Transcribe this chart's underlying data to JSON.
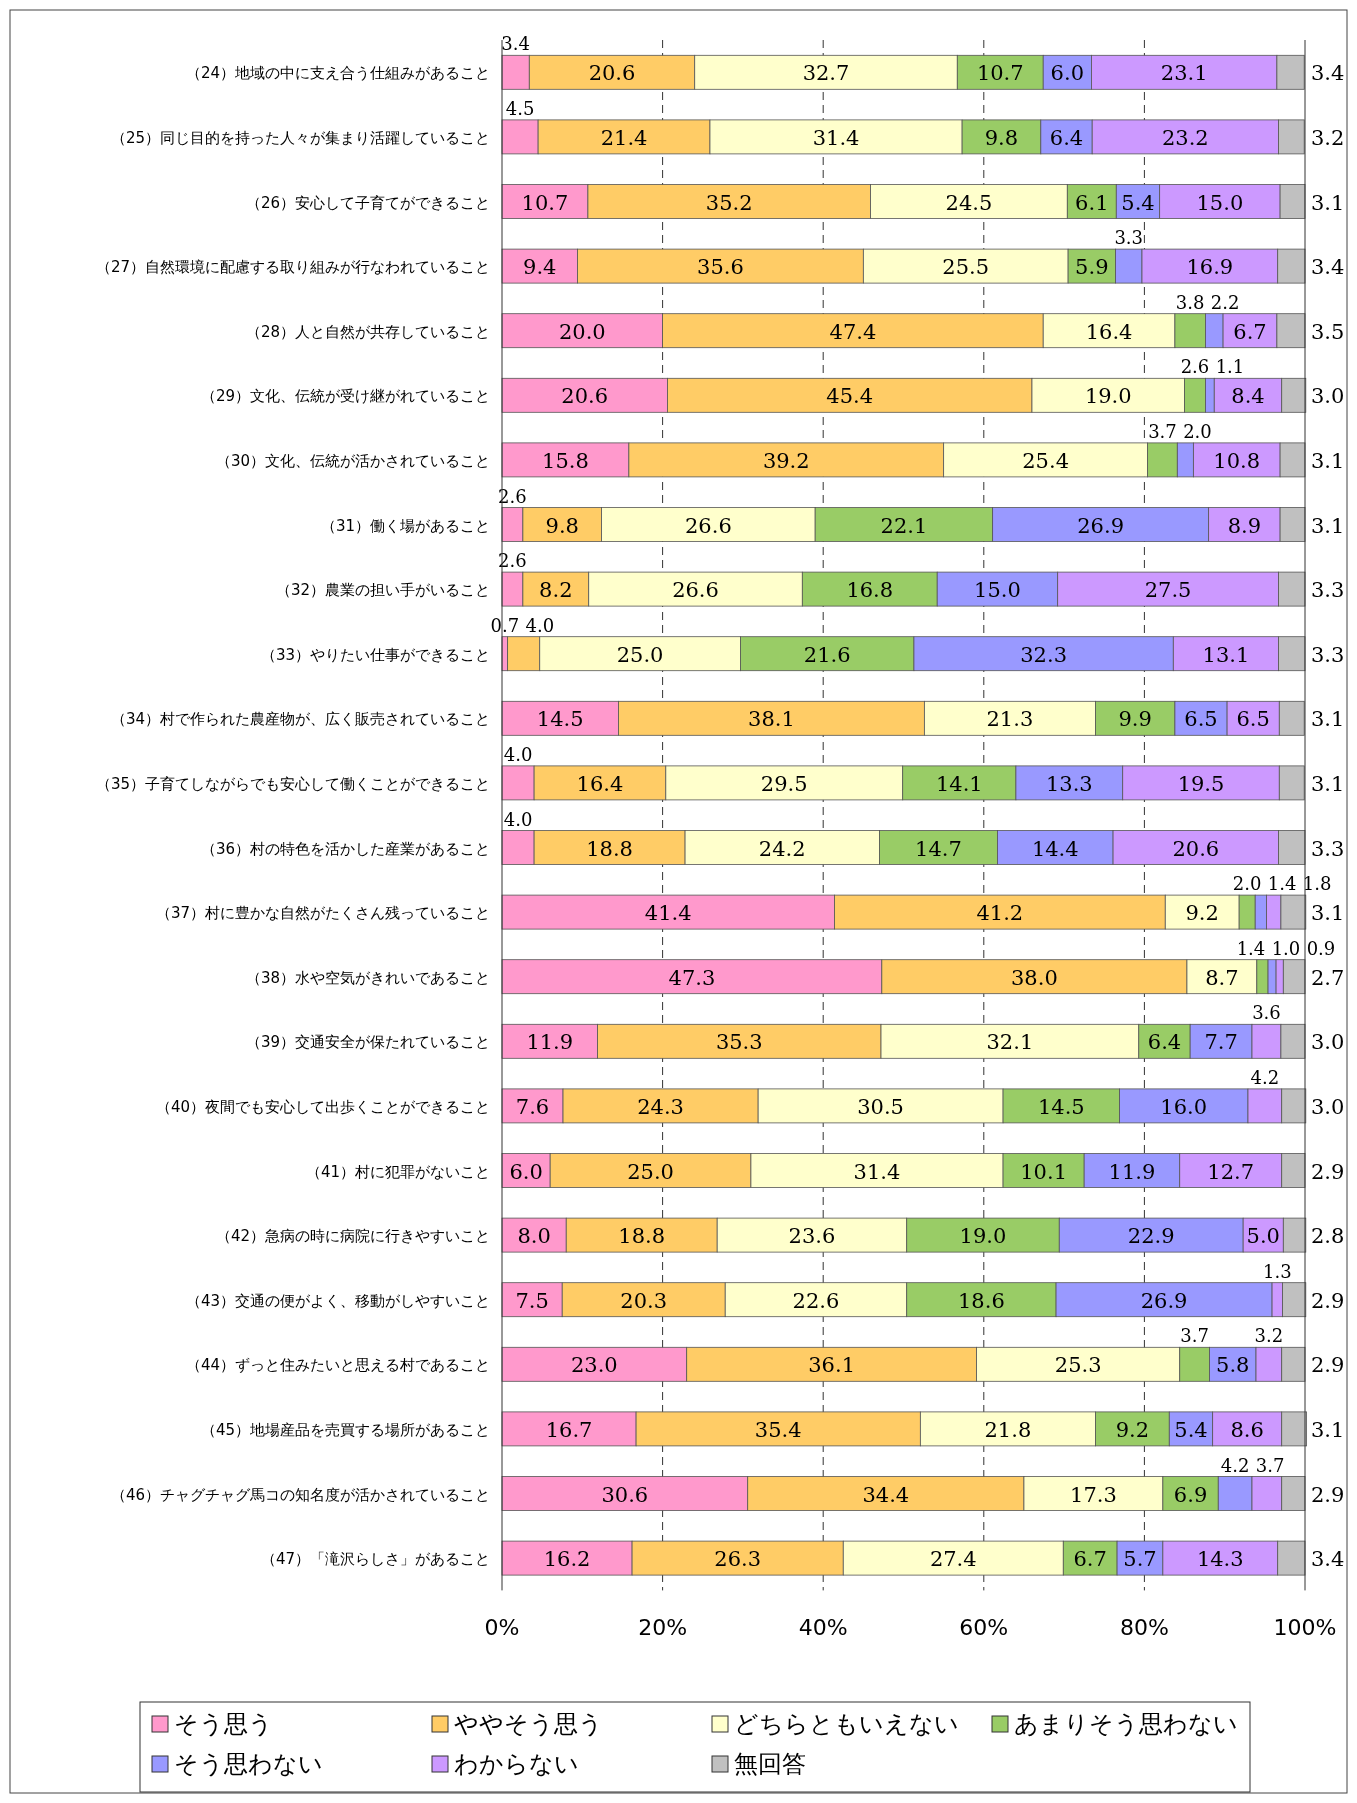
{
  "chart_data": {
    "type": "bar",
    "orientation": "horizontal",
    "stacked": true,
    "data_labels": true,
    "grid": "x",
    "legend": "bottom",
    "xlim": [
      0,
      100
    ],
    "xticks": [
      {
        "value": 0,
        "label": "0%"
      },
      {
        "value": 20,
        "label": "20%"
      },
      {
        "value": 40,
        "label": "40%"
      },
      {
        "value": 60,
        "label": "60%"
      },
      {
        "value": 80,
        "label": "80%"
      },
      {
        "value": 100,
        "label": "100%"
      }
    ],
    "categories": [
      "（24）地域の中に支え合う仕組みがあること",
      "（25）同じ目的を持った人々が集まり活躍していること",
      "（26）安心して子育てができること",
      "（27）自然環境に配慮する取り組みが行なわれていること",
      "（28）人と自然が共存していること",
      "（29）文化、伝統が受け継がれていること",
      "（30）文化、伝統が活かされていること",
      "（31）働く場があること",
      "（32）農業の担い手がいること",
      "（33）やりたい仕事ができること",
      "（34）村で作られた農産物が、広く販売されていること",
      "（35）子育てしながらでも安心して働くことができること",
      "（36）村の特色を活かした産業があること",
      "（37）村に豊かな自然がたくさん残っていること",
      "（38）水や空気がきれいであること",
      "（39）交通安全が保たれていること",
      "（40）夜間でも安心して出歩くことができること",
      "（41）村に犯罪がないこと",
      "（42）急病の時に病院に行きやすいこと",
      "（43）交通の便がよく、移動がしやすいこと",
      "（44）ずっと住みたいと思える村であること",
      "（45）地場産品を売買する場所があること",
      "（46）チャグチャグ馬コの知名度が活かされていること",
      "（47）「滝沢らしさ」があること"
    ],
    "series": [
      {
        "name": "そう思う",
        "color": "#ff99cc",
        "values": [
          3.4,
          4.5,
          10.7,
          9.4,
          20.0,
          20.6,
          15.8,
          2.6,
          2.6,
          0.7,
          14.5,
          4.0,
          4.0,
          41.4,
          47.3,
          11.9,
          7.6,
          6.0,
          8.0,
          7.5,
          23.0,
          16.7,
          30.6,
          16.2
        ],
        "value_labels": [
          "3.4",
          "4.5",
          "10.7",
          "9.4",
          "20.0",
          "20.6",
          "15.8",
          "2.6",
          "2.6",
          "0.7",
          "14.5",
          "4.0",
          "4.0",
          "41.4",
          "47.3",
          "11.9",
          "7.6",
          "6.0",
          "8.0",
          "7.5",
          "23.0",
          "16.7",
          "30.6",
          "16.2"
        ]
      },
      {
        "name": "ややそう思う",
        "color": "#ffcc66",
        "values": [
          20.6,
          21.4,
          35.2,
          35.6,
          47.4,
          45.4,
          39.2,
          9.8,
          8.2,
          4.0,
          38.1,
          16.4,
          18.8,
          41.2,
          38.0,
          35.3,
          24.3,
          25.0,
          18.8,
          20.3,
          36.1,
          35.4,
          34.4,
          26.3
        ],
        "value_labels": [
          "20.6",
          "21.4",
          "35.2",
          "35.6",
          "47.4",
          "45.4",
          "39.2",
          "9.8",
          "8.2",
          "4.0",
          "38.1",
          "16.4",
          "18.8",
          "41.2",
          "38.0",
          "35.3",
          "24.3",
          "25.0",
          "18.8",
          "20.3",
          "36.1",
          "35.4",
          "34.4",
          "26.3"
        ]
      },
      {
        "name": "どちらともいえない",
        "color": "#ffffcc",
        "values": [
          32.7,
          31.4,
          24.5,
          25.5,
          16.4,
          19.0,
          25.4,
          26.6,
          26.6,
          25.0,
          21.3,
          29.5,
          24.2,
          9.2,
          8.7,
          32.1,
          30.5,
          31.4,
          23.6,
          22.6,
          25.3,
          21.8,
          17.3,
          27.4
        ],
        "value_labels": [
          "32.7",
          "31.4",
          "24.5",
          "25.5",
          "16.4",
          "19.0",
          "25.4",
          "26.6",
          "26.6",
          "25.0",
          "21.3",
          "29.5",
          "24.2",
          "9.2",
          "8.7",
          "32.1",
          "30.5",
          "31.4",
          "23.6",
          "22.6",
          "25.3",
          "21.8",
          "17.3",
          "27.4"
        ]
      },
      {
        "name": "あまりそう思わない",
        "color": "#99cc66",
        "values": [
          10.7,
          9.8,
          6.1,
          5.9,
          3.8,
          2.6,
          3.7,
          22.1,
          16.8,
          21.6,
          9.9,
          14.1,
          14.7,
          2.0,
          1.4,
          6.4,
          14.5,
          10.1,
          19.0,
          18.6,
          3.7,
          9.2,
          6.9,
          6.7
        ],
        "value_labels": [
          "10.7",
          "9.8",
          "6.1",
          "5.9",
          "3.8",
          "2.6",
          "3.7",
          "22.1",
          "16.8",
          "21.6",
          "9.9",
          "14.1",
          "14.7",
          "2.0",
          "1.4",
          "6.4",
          "14.5",
          "10.1",
          "19.0",
          "18.6",
          "3.7",
          "9.2",
          "6.9",
          "6.7"
        ]
      },
      {
        "name": "そう思わない",
        "color": "#9999ff",
        "values": [
          6.0,
          6.4,
          5.4,
          3.3,
          2.2,
          1.1,
          2.0,
          26.9,
          15.0,
          32.3,
          6.5,
          13.3,
          14.4,
          1.4,
          1.0,
          7.7,
          16.0,
          11.9,
          22.9,
          26.9,
          5.8,
          5.4,
          4.2,
          5.7
        ],
        "value_labels": [
          "6.0",
          "6.4",
          "5.4",
          "3.3",
          "2.2",
          "1.1",
          "2.0",
          "26.9",
          "15.0",
          "32.3",
          "6.5",
          "13.3",
          "14.4",
          "1.4",
          "1.0",
          "7.7",
          "16.0",
          "11.9",
          "22.9",
          "26.9",
          "5.8",
          "5.4",
          "4.2",
          "5.7"
        ]
      },
      {
        "name": "わからない",
        "color": "#cc99ff",
        "values": [
          23.1,
          23.2,
          15.0,
          16.9,
          6.7,
          8.4,
          10.8,
          8.9,
          27.5,
          13.1,
          6.5,
          19.5,
          20.6,
          1.8,
          0.9,
          3.6,
          4.2,
          12.7,
          5.0,
          1.3,
          3.2,
          8.6,
          3.7,
          14.3
        ],
        "value_labels": [
          "23.1",
          "23.2",
          "15.0",
          "16.9",
          "6.7",
          "8.4",
          "10.8",
          "8.9",
          "27.5",
          "13.1",
          "6.5",
          "19.5",
          "20.6",
          "1.8",
          "0.9",
          "3.6",
          "4.2",
          "12.7",
          "5.0",
          "1.3",
          "3.2",
          "8.6",
          "3.7",
          "14.3"
        ]
      },
      {
        "name": "無回答",
        "color": "#c0c0c0",
        "values": [
          3.4,
          3.2,
          3.1,
          3.4,
          3.5,
          3.0,
          3.1,
          3.1,
          3.3,
          3.3,
          3.1,
          3.1,
          3.3,
          3.1,
          2.7,
          3.0,
          3.0,
          2.9,
          2.8,
          2.9,
          2.9,
          3.1,
          2.9,
          3.4
        ],
        "value_labels": [
          "3.4",
          "3.2",
          "3.1",
          "3.4",
          "3.5",
          "3.0",
          "3.1",
          "3.1",
          "3.3",
          "3.3",
          "3.1",
          "3.1",
          "3.3",
          "3.1",
          "2.7",
          "3.0",
          "3.0",
          "2.9",
          "2.8",
          "2.9",
          "2.9",
          "3.1",
          "2.9",
          "3.4"
        ]
      }
    ]
  }
}
